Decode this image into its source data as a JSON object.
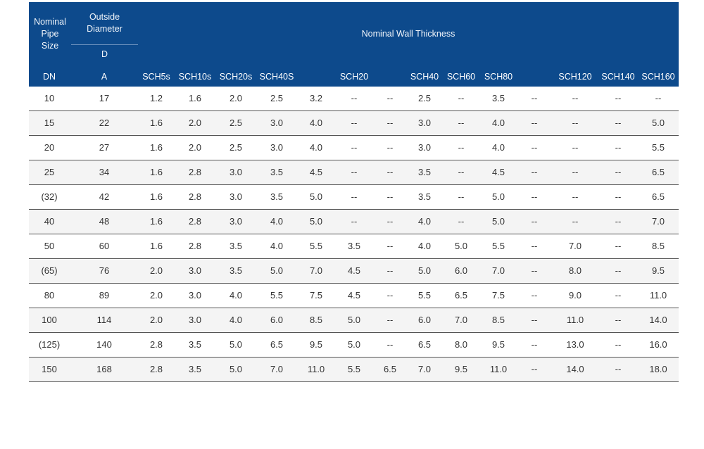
{
  "header": {
    "nominal_pipe_size": [
      "Nominal",
      "Pipe",
      "Size"
    ],
    "outside_diameter": [
      "Outside",
      "Diameter"
    ],
    "diameter_symbol": "D",
    "wall_thickness_title": "Nominal Wall Thickness"
  },
  "columns": [
    "DN",
    "A",
    "SCH5s",
    "SCH10s",
    "SCH20s",
    "SCH40S",
    "",
    "SCH20",
    "",
    "SCH40",
    "SCH60",
    "SCH80",
    "",
    "SCH120",
    "SCH140",
    "SCH160"
  ],
  "rows": [
    [
      "10",
      "17",
      "1.2",
      "1.6",
      "2.0",
      "2.5",
      "3.2",
      "--",
      "--",
      "2.5",
      "--",
      "3.5",
      "--",
      "--",
      "--",
      "--"
    ],
    [
      "15",
      "22",
      "1.6",
      "2.0",
      "2.5",
      "3.0",
      "4.0",
      "--",
      "--",
      "3.0",
      "--",
      "4.0",
      "--",
      "--",
      "--",
      "5.0"
    ],
    [
      "20",
      "27",
      "1.6",
      "2.0",
      "2.5",
      "3.0",
      "4.0",
      "--",
      "--",
      "3.0",
      "--",
      "4.0",
      "--",
      "--",
      "--",
      "5.5"
    ],
    [
      "25",
      "34",
      "1.6",
      "2.8",
      "3.0",
      "3.5",
      "4.5",
      "--",
      "--",
      "3.5",
      "--",
      "4.5",
      "--",
      "--",
      "--",
      "6.5"
    ],
    [
      "(32)",
      "42",
      "1.6",
      "2.8",
      "3.0",
      "3.5",
      "5.0",
      "--",
      "--",
      "3.5",
      "--",
      "5.0",
      "--",
      "--",
      "--",
      "6.5"
    ],
    [
      "40",
      "48",
      "1.6",
      "2.8",
      "3.0",
      "4.0",
      "5.0",
      "--",
      "--",
      "4.0",
      "--",
      "5.0",
      "--",
      "--",
      "--",
      "7.0"
    ],
    [
      "50",
      "60",
      "1.6",
      "2.8",
      "3.5",
      "4.0",
      "5.5",
      "3.5",
      "--",
      "4.0",
      "5.0",
      "5.5",
      "--",
      "7.0",
      "--",
      "8.5"
    ],
    [
      "(65)",
      "76",
      "2.0",
      "3.0",
      "3.5",
      "5.0",
      "7.0",
      "4.5",
      "--",
      "5.0",
      "6.0",
      "7.0",
      "--",
      "8.0",
      "--",
      "9.5"
    ],
    [
      "80",
      "89",
      "2.0",
      "3.0",
      "4.0",
      "5.5",
      "7.5",
      "4.5",
      "--",
      "5.5",
      "6.5",
      "7.5",
      "--",
      "9.0",
      "--",
      "11.0"
    ],
    [
      "100",
      "114",
      "2.0",
      "3.0",
      "4.0",
      "6.0",
      "8.5",
      "5.0",
      "--",
      "6.0",
      "7.0",
      "8.5",
      "--",
      "11.0",
      "--",
      "14.0"
    ],
    [
      "(125)",
      "140",
      "2.8",
      "3.5",
      "5.0",
      "6.5",
      "9.5",
      "5.0",
      "--",
      "6.5",
      "8.0",
      "9.5",
      "--",
      "13.0",
      "--",
      "16.0"
    ],
    [
      "150",
      "168",
      "2.8",
      "3.5",
      "5.0",
      "7.0",
      "11.0",
      "5.5",
      "6.5",
      "7.0",
      "9.5",
      "11.0",
      "--",
      "14.0",
      "--",
      "18.0"
    ]
  ],
  "colors": {
    "header_bg": "#0d4a8c",
    "alt_row_bg": "#f4f4f4",
    "row_border": "#555555"
  }
}
